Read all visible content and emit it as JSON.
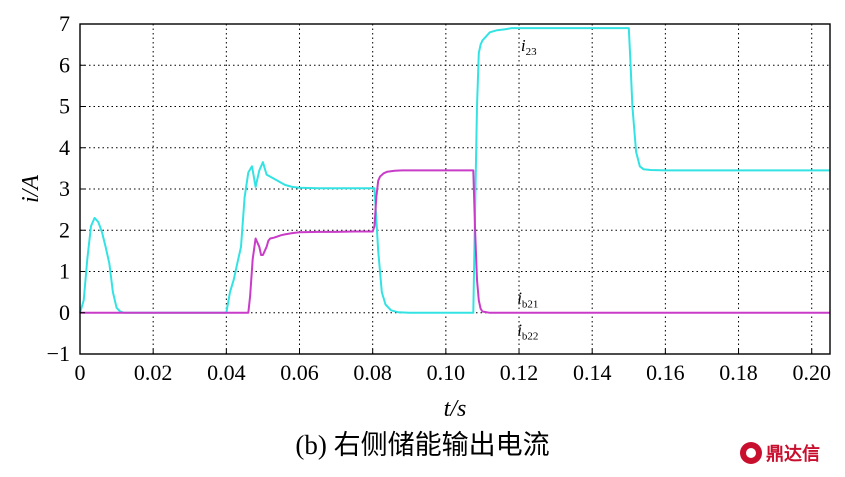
{
  "chart_data": {
    "type": "line",
    "xlabel": "t/s",
    "ylabel": "i/A",
    "xlim": [
      0,
      0.205
    ],
    "ylim": [
      -1,
      7
    ],
    "x_ticks": [
      "0",
      "0.02",
      "0.04",
      "0.06",
      "0.08",
      "0.10",
      "0.12",
      "0.14",
      "0.16",
      "0.18",
      "0.20"
    ],
    "x_tick_values": [
      0,
      0.02,
      0.04,
      0.06,
      0.08,
      0.1,
      0.12,
      0.14,
      0.16,
      0.18,
      0.2
    ],
    "y_ticks": [
      "−1",
      "0",
      "1",
      "2",
      "3",
      "4",
      "5",
      "6",
      "7"
    ],
    "y_tick_values": [
      -1,
      0,
      1,
      2,
      3,
      4,
      5,
      6,
      7
    ],
    "grid": true,
    "colors": {
      "cyan": "#33e3e3",
      "magenta": "#c83cc8"
    },
    "series": [
      {
        "color": "cyan",
        "x": [
          0,
          0.001,
          0.002,
          0.003,
          0.004,
          0.005,
          0.006,
          0.007,
          0.008,
          0.009,
          0.01,
          0.011,
          0.012,
          0.013,
          0.04,
          0.041,
          0.042,
          0.043,
          0.044,
          0.045,
          0.046,
          0.047,
          0.048,
          0.049,
          0.05,
          0.051,
          0.052,
          0.054,
          0.056,
          0.058,
          0.06,
          0.065,
          0.07,
          0.075,
          0.0805,
          0.0815,
          0.0825,
          0.0835,
          0.085,
          0.087,
          0.09,
          0.095,
          0.1,
          0.1075,
          0.108,
          0.1085,
          0.109,
          0.1095,
          0.11,
          0.111,
          0.112,
          0.114,
          0.116,
          0.118,
          0.12,
          0.13,
          0.14,
          0.15,
          0.1505,
          0.151,
          0.152,
          0.153,
          0.154,
          0.156,
          0.16,
          0.17,
          0.18,
          0.19,
          0.2,
          0.205
        ],
        "y": [
          0,
          0.3,
          1.3,
          2.1,
          2.3,
          2.2,
          1.95,
          1.6,
          1.2,
          0.5,
          0.12,
          0.03,
          0,
          0,
          0,
          0.5,
          0.8,
          1.2,
          1.6,
          2.8,
          3.4,
          3.55,
          3.05,
          3.45,
          3.65,
          3.35,
          3.3,
          3.2,
          3.1,
          3.05,
          3.03,
          3.02,
          3.02,
          3.02,
          3.02,
          1.5,
          0.5,
          0.2,
          0.06,
          0.01,
          0,
          0,
          0,
          0,
          2.5,
          5.0,
          6.3,
          6.5,
          6.6,
          6.7,
          6.8,
          6.85,
          6.87,
          6.9,
          6.9,
          6.9,
          6.9,
          6.9,
          6.0,
          5.0,
          3.9,
          3.55,
          3.48,
          3.46,
          3.45,
          3.45,
          3.45,
          3.45,
          3.45,
          3.45
        ]
      },
      {
        "color": "magenta",
        "x": [
          0,
          0.046,
          0.0465,
          0.0472,
          0.048,
          0.049,
          0.0495,
          0.05,
          0.051,
          0.0515,
          0.052,
          0.053,
          0.054,
          0.055,
          0.056,
          0.058,
          0.06,
          0.065,
          0.07,
          0.075,
          0.08,
          0.0805,
          0.081,
          0.0815,
          0.082,
          0.083,
          0.084,
          0.086,
          0.088,
          0.09,
          0.1,
          0.1075,
          0.108,
          0.1085,
          0.109,
          0.1095,
          0.11,
          0.112,
          0.115,
          0.12,
          0.15,
          0.18,
          0.205
        ],
        "y": [
          0,
          0,
          0.4,
          1.3,
          1.8,
          1.6,
          1.4,
          1.4,
          1.6,
          1.75,
          1.8,
          1.82,
          1.85,
          1.88,
          1.9,
          1.93,
          1.95,
          1.96,
          1.96,
          1.97,
          1.97,
          2.1,
          2.8,
          3.2,
          3.3,
          3.38,
          3.42,
          3.44,
          3.45,
          3.45,
          3.45,
          3.45,
          2.0,
          0.8,
          0.3,
          0.1,
          0.03,
          0,
          0,
          0,
          0,
          0,
          0
        ]
      }
    ],
    "annotations": [
      {
        "main": "i",
        "sub": "23",
        "x": 0.1205,
        "y": 6.35
      },
      {
        "main": "i",
        "sub": "b21",
        "x": 0.1195,
        "y": 0.22
      },
      {
        "main": "i",
        "sub": "b22",
        "x": 0.1195,
        "y": -0.55
      }
    ]
  },
  "caption": "(b) 右侧储能输出电流",
  "watermark": "鼎达信"
}
